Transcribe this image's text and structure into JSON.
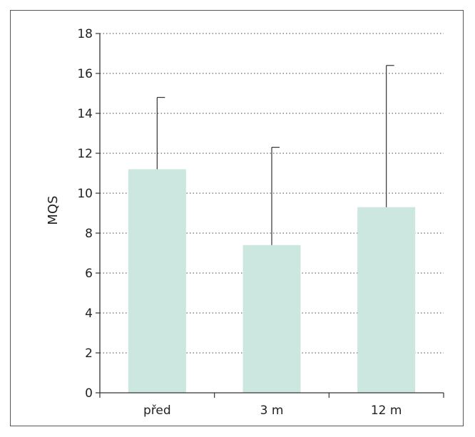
{
  "chart_data": {
    "type": "bar",
    "categories": [
      "před",
      "3 m",
      "12 m"
    ],
    "values": [
      11.2,
      7.4,
      9.3
    ],
    "error_upper": [
      14.8,
      12.3,
      16.4
    ],
    "title": "",
    "xlabel": "",
    "ylabel": "MQS",
    "ylim": [
      0,
      18
    ],
    "yticks": [
      "0",
      "2",
      "4",
      "6",
      "8",
      "10",
      "12",
      "14",
      "16",
      "18"
    ],
    "grid": "y-dotted",
    "legend": "none",
    "colors": {
      "bar": "#cce7e0",
      "axis": "#333333",
      "grid": "#666666",
      "error_bar": "#333333"
    }
  }
}
